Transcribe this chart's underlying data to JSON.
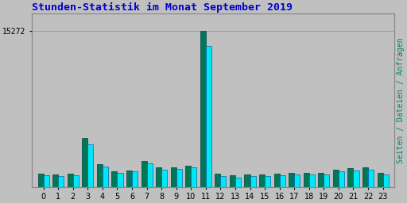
{
  "title": "Stunden-Statistik im Monat September 2019",
  "title_color": "#0000cc",
  "title_fontsize": 9.5,
  "ylabel_right": "Seiten / Dateien / Anfragen",
  "ylabel_right_color": "#008868",
  "ylabel_right_fontsize": 7,
  "background_color": "#c0c0c0",
  "plot_bg_color": "#c0c0c0",
  "bar_color_cyan": "#00e8f8",
  "bar_color_teal": "#007858",
  "grid_color": "#999999",
  "hours": [
    0,
    1,
    2,
    3,
    4,
    5,
    6,
    7,
    8,
    9,
    10,
    11,
    12,
    13,
    14,
    15,
    16,
    17,
    18,
    19,
    20,
    21,
    22,
    23
  ],
  "seiten": [
    1300,
    1200,
    1300,
    4800,
    2200,
    1500,
    1600,
    2500,
    1900,
    1900,
    2100,
    15272,
    1300,
    1100,
    1200,
    1200,
    1300,
    1400,
    1400,
    1400,
    1700,
    1800,
    1900,
    1400
  ],
  "anfragen": [
    1150,
    1050,
    1150,
    4200,
    2000,
    1350,
    1500,
    2300,
    1700,
    1750,
    1950,
    13800,
    1050,
    900,
    1050,
    1050,
    1100,
    1200,
    1200,
    1200,
    1500,
    1600,
    1700,
    1200
  ],
  "ylim": [
    0,
    17000
  ],
  "ytick_val": 15272,
  "ytick_label": "15272",
  "bar_width": 0.38,
  "border_color": "#888888"
}
